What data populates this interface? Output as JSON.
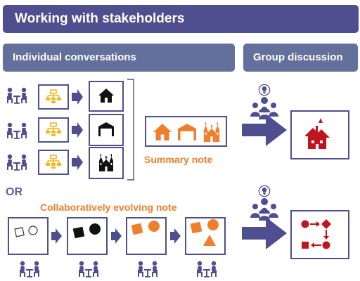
{
  "title": "Working with stakeholders",
  "headers": {
    "individual": "Individual conversations",
    "group": "Group discussion"
  },
  "labels": {
    "summary_note": "Summary note",
    "or": "OR",
    "collab_note": "Collaboratively evolving note"
  },
  "colors": {
    "banner": "#4f4e8e",
    "subhead": "#62709b",
    "box_border": "#4f4e8e",
    "arrow": "#4f4e8e",
    "orange": "#f07e2b",
    "yellow": "#f3b81d",
    "red": "#c1141c",
    "people": "#4f4e8e"
  },
  "icons": {
    "conversation": "two-people-at-table-icon",
    "outline": "outline-tree-icon",
    "house": "house-icon",
    "warehouse": "warehouse-icon",
    "church": "church-icon",
    "group": "group-people-icon",
    "idea": "lightbulb-icon",
    "haunted_house": "haunted-house-icon",
    "process": "process-diagram-icon"
  }
}
